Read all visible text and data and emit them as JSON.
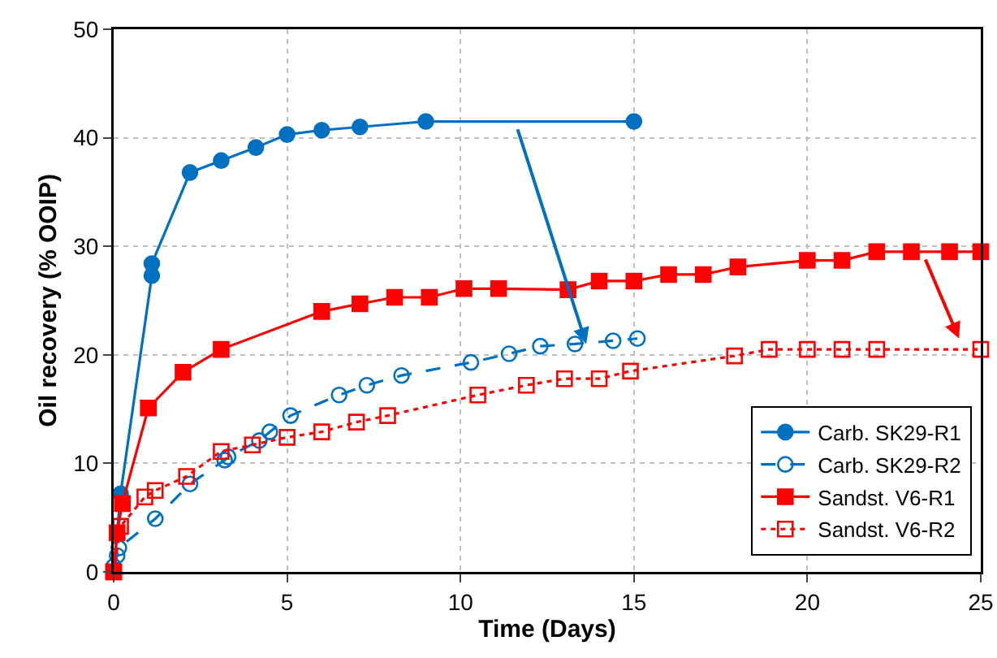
{
  "chart_data": {
    "type": "line",
    "xlabel": "Time (Days)",
    "ylabel": "Oil recovery (% OOIP)",
    "xlim": [
      0,
      25
    ],
    "xticks": [
      0,
      5,
      10,
      15,
      20,
      25
    ],
    "ylim": [
      0,
      50
    ],
    "yticks": [
      0,
      10,
      20,
      30,
      40,
      50
    ],
    "grid": true,
    "legend": "bottom right",
    "series": [
      {
        "name": "Carb. SK29-R1",
        "color": "#0070c0",
        "marker": "circle",
        "line_style": "solid",
        "x": [
          0,
          0.2,
          1.1,
          1.1,
          2.2,
          3.1,
          4.1,
          5.0,
          6.0,
          7.1,
          9.0,
          15.0
        ],
        "values": [
          0,
          7.2,
          27.3,
          28.4,
          36.8,
          37.9,
          39.1,
          40.3,
          40.7,
          41.0,
          41.5,
          41.5
        ]
      },
      {
        "name": "Carb. SK29-R2",
        "color": "#0070c0",
        "marker": "circle",
        "line_style": "dashed",
        "x": [
          0,
          0.1,
          0.15,
          1.2,
          2.2,
          3.2,
          3.3,
          4.2,
          4.5,
          5.1,
          6.5,
          7.3,
          8.3,
          10.3,
          11.4,
          12.3,
          13.3,
          14.4,
          15.1
        ],
        "values": [
          0.5,
          1.5,
          2.2,
          4.9,
          8.1,
          10.3,
          10.6,
          12.1,
          12.9,
          14.4,
          16.3,
          17.2,
          18.1,
          19.3,
          20.1,
          20.8,
          21.0,
          21.3,
          21.5
        ]
      },
      {
        "name": "Sandst. V6-R1",
        "color": "#ff0000",
        "marker": "square",
        "line_style": "solid",
        "x": [
          0,
          0.1,
          0.25,
          1.0,
          2.0,
          3.1,
          6.0,
          7.1,
          8.1,
          9.1,
          10.1,
          11.1,
          13.1,
          14.0,
          15.0,
          16.0,
          17.0,
          18.0,
          20.0,
          21.0,
          22.0,
          23.0,
          24.1,
          25.0
        ],
        "values": [
          0,
          3.6,
          6.3,
          15.1,
          18.4,
          20.5,
          24.0,
          24.7,
          25.3,
          25.3,
          26.1,
          26.1,
          26.0,
          26.8,
          26.8,
          27.4,
          27.4,
          28.1,
          28.7,
          28.7,
          29.5,
          29.5,
          29.5,
          29.5
        ]
      },
      {
        "name": "Sandst. V6-R2",
        "color": "#ff0000",
        "marker": "square",
        "line_style": "dotted",
        "x": [
          0,
          0.2,
          0.9,
          1.2,
          2.1,
          3.1,
          4.0,
          5.0,
          6.0,
          7.0,
          7.9,
          10.5,
          11.9,
          13.0,
          14.0,
          14.9,
          17.9,
          18.9,
          20.0,
          21.0,
          22.0,
          25.0
        ],
        "values": [
          0,
          4.2,
          6.9,
          7.5,
          8.8,
          11.1,
          11.7,
          12.4,
          12.9,
          13.8,
          14.4,
          16.3,
          17.2,
          17.8,
          17.8,
          18.5,
          19.9,
          20.5,
          20.5,
          20.5,
          20.5,
          20.5
        ]
      }
    ]
  }
}
